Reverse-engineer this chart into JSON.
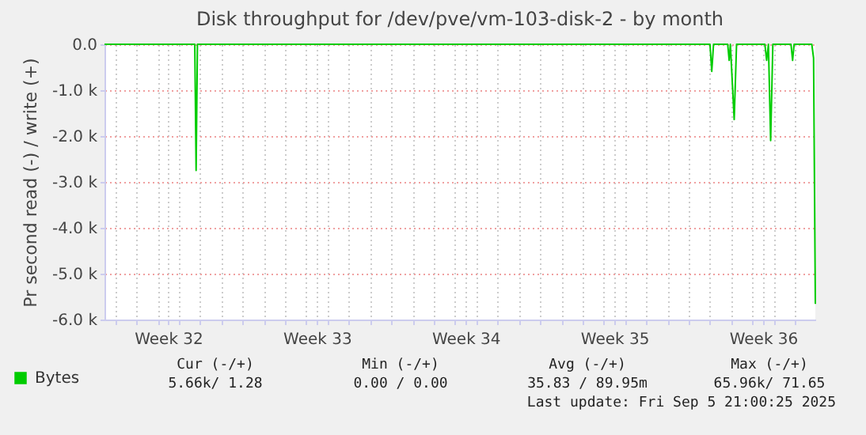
{
  "chart_data": {
    "type": "line",
    "title": "Disk throughput for /dev/pve/vm-103-disk-2 - by month",
    "ylabel": "Pr second read (-) / write (+)",
    "x": [
      "2025-08-03T12:00",
      "2025-08-07T18:00",
      "2025-08-07T19:30",
      "2025-08-07T21:00",
      "2025-09-01T00:00",
      "2025-09-01T02:00",
      "2025-09-01T04:00",
      "2025-09-01T20:00",
      "2025-09-01T21:40",
      "2025-09-01T23:00",
      "2025-09-02T03:20",
      "2025-09-02T06:00",
      "2025-09-03T14:00",
      "2025-09-03T16:00",
      "2025-09-03T18:00",
      "2025-09-03T20:30",
      "2025-09-03T23:00",
      "2025-09-04T19:30",
      "2025-09-04T21:20",
      "2025-09-04T23:00",
      "2025-09-05T19:00",
      "2025-09-05T21:00",
      "2025-09-05T23:00"
    ],
    "series": [
      {
        "name": "Bytes",
        "color": "#00cc00",
        "values": [
          0,
          0,
          -2750,
          0,
          0,
          -590,
          0,
          0,
          -350,
          0,
          -1640,
          0,
          0,
          -350,
          0,
          -2100,
          0,
          0,
          -350,
          0,
          0,
          -300,
          -5660
        ]
      }
    ],
    "xlim": [
      "2025-08-03T12:00",
      "2025-09-05T23:00"
    ],
    "xticks": [
      {
        "value": "2025-08-04",
        "label": null
      },
      {
        "value": "2025-08-05",
        "label": null
      },
      {
        "value": "2025-08-06",
        "label": null
      },
      {
        "value": "2025-08-06T12:00",
        "label": "Week 32"
      },
      {
        "value": "2025-08-07",
        "label": null
      },
      {
        "value": "2025-08-08",
        "label": null
      },
      {
        "value": "2025-08-09",
        "label": null
      },
      {
        "value": "2025-08-10",
        "label": null
      },
      {
        "value": "2025-08-11",
        "label": null
      },
      {
        "value": "2025-08-12",
        "label": null
      },
      {
        "value": "2025-08-13",
        "label": null
      },
      {
        "value": "2025-08-13T12:00",
        "label": "Week 33"
      },
      {
        "value": "2025-08-14",
        "label": null
      },
      {
        "value": "2025-08-15",
        "label": null
      },
      {
        "value": "2025-08-16",
        "label": null
      },
      {
        "value": "2025-08-17",
        "label": null
      },
      {
        "value": "2025-08-18",
        "label": null
      },
      {
        "value": "2025-08-19",
        "label": null
      },
      {
        "value": "2025-08-20",
        "label": null
      },
      {
        "value": "2025-08-20T12:00",
        "label": "Week 34"
      },
      {
        "value": "2025-08-21",
        "label": null
      },
      {
        "value": "2025-08-22",
        "label": null
      },
      {
        "value": "2025-08-23",
        "label": null
      },
      {
        "value": "2025-08-24",
        "label": null
      },
      {
        "value": "2025-08-25",
        "label": null
      },
      {
        "value": "2025-08-26",
        "label": null
      },
      {
        "value": "2025-08-27",
        "label": null
      },
      {
        "value": "2025-08-27T12:00",
        "label": "Week 35"
      },
      {
        "value": "2025-08-28",
        "label": null
      },
      {
        "value": "2025-08-29",
        "label": null
      },
      {
        "value": "2025-08-30",
        "label": null
      },
      {
        "value": "2025-08-31",
        "label": null
      },
      {
        "value": "2025-09-01",
        "label": null
      },
      {
        "value": "2025-09-02",
        "label": null
      },
      {
        "value": "2025-09-03",
        "label": null
      },
      {
        "value": "2025-09-03T12:00",
        "label": "Week 36"
      },
      {
        "value": "2025-09-04",
        "label": null
      },
      {
        "value": "2025-09-05",
        "label": null
      }
    ],
    "ylim": [
      -6000,
      0
    ],
    "yticks": [
      {
        "value": -6000,
        "label": "-6.0 k"
      },
      {
        "value": -5000,
        "label": "-5.0 k"
      },
      {
        "value": -4000,
        "label": "-4.0 k"
      },
      {
        "value": -3000,
        "label": "-3.0 k"
      },
      {
        "value": -2000,
        "label": "-2.0 k"
      },
      {
        "value": -1000,
        "label": "-1.0 k"
      },
      {
        "value": 0,
        "label": "0.0"
      }
    ],
    "grid": true,
    "legend": "bottom",
    "line_style": "solid",
    "annotations": [
      "Cur (-/+)",
      "Min (-/+)",
      "Avg (-/+)",
      "Max (-/+)",
      "5.66k/   1.28",
      "0.00 /   0.00",
      "35.83 /  89.95m",
      "65.96k/  71.65",
      "Last update: Fri Sep  5 21:00:25 2025"
    ]
  }
}
